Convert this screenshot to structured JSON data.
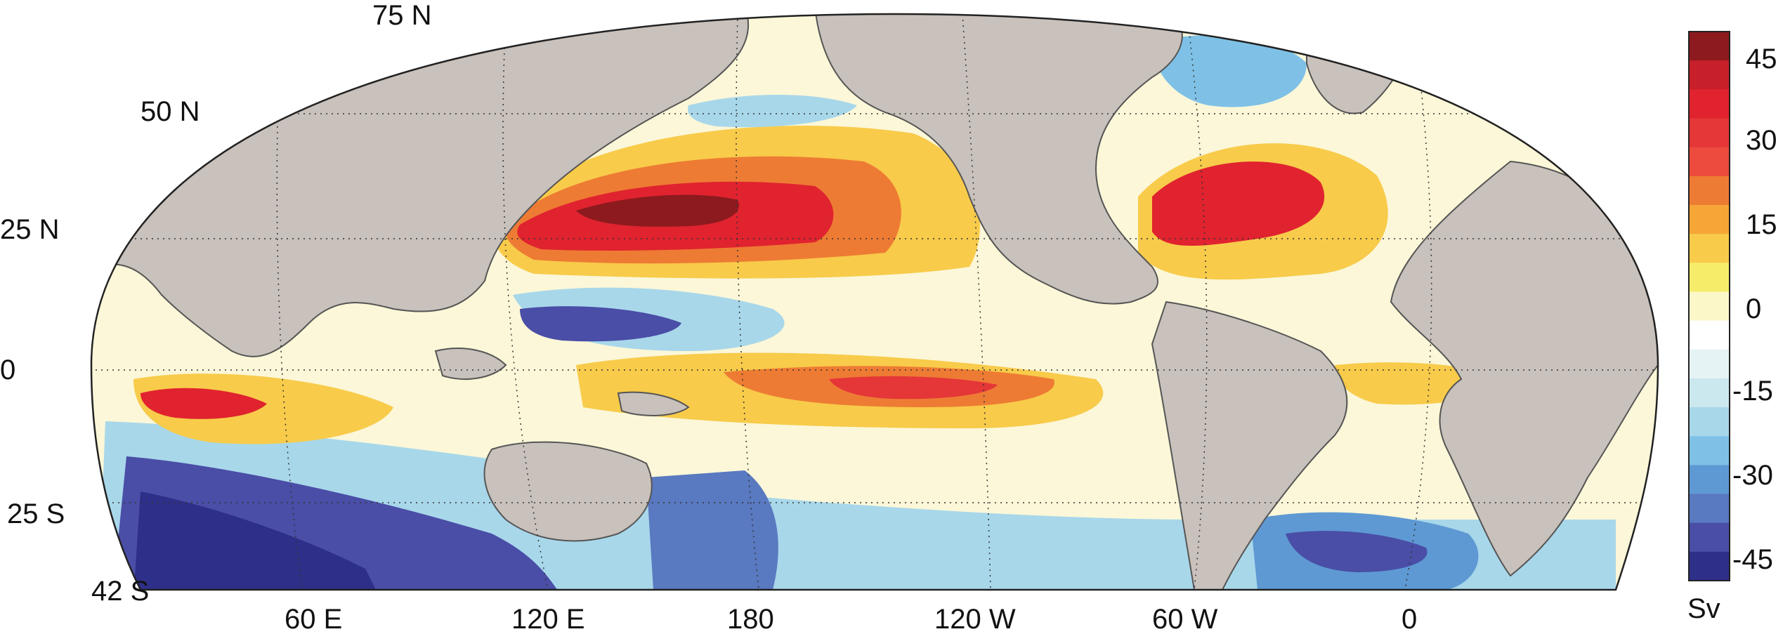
{
  "map": {
    "projection": "mollweide-like",
    "lat_labels": [
      "75 N",
      "50 N",
      "25 N",
      "0",
      "25 S",
      "42 S"
    ],
    "lon_labels": [
      "60 E",
      "120 E",
      "180",
      "120 W",
      "60 W",
      "0"
    ],
    "land_color": "#c9c1bb",
    "grid": "dotted"
  },
  "colorbar": {
    "unit": "Sv",
    "ticks": [
      "45",
      "30",
      "15",
      "0",
      "-15",
      "-30",
      "-45"
    ],
    "colors": [
      "#8c1a1e",
      "#c8202a",
      "#e0232f",
      "#e53638",
      "#ec4b3d",
      "#ee7b34",
      "#f5a636",
      "#f8cb4a",
      "#f7ec6a",
      "#fbf7c8",
      "#ffffff",
      "#e6f3f4",
      "#cce8ef",
      "#a8d7ea",
      "#7fc1e6",
      "#5e99d3",
      "#5979c0",
      "#4a4ea6",
      "#2e2f88"
    ]
  }
}
